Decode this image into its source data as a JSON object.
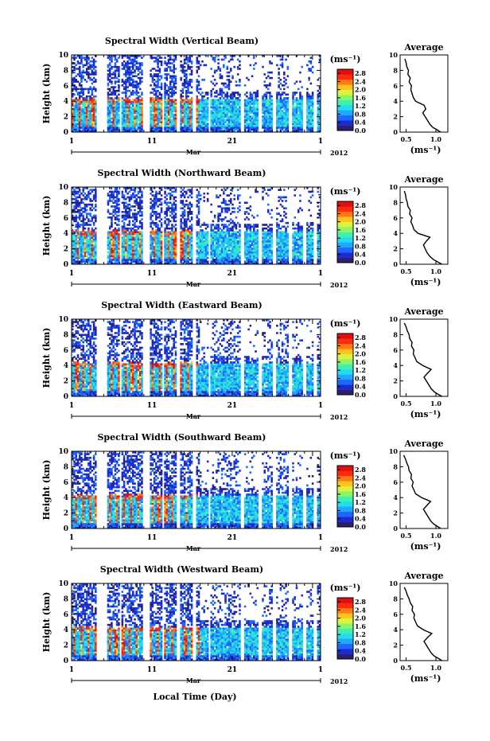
{
  "chart_data": {
    "type": "heatmap",
    "xlabel": "Local Time (Day)",
    "month_label": "Mar",
    "year_label": "2012",
    "x_ticks": [
      "1",
      "11",
      "21",
      "1"
    ],
    "xlim_days": [
      1,
      32
    ],
    "ylabel": "Height (km)",
    "ylim_km": [
      0,
      10
    ],
    "y_ticks": [
      "0",
      "2",
      "4",
      "6",
      "8",
      "10"
    ],
    "colorbar": {
      "unit_label": "(ms⁻¹)",
      "ticks": [
        "0.0",
        "0.4",
        "0.8",
        "1.2",
        "1.6",
        "2.0",
        "2.4",
        "2.8"
      ],
      "range": [
        0.0,
        3.0
      ],
      "colors": [
        "#2b1f6e",
        "#1b2bd0",
        "#1f66ff",
        "#1fa8ff",
        "#22ddee",
        "#3ff0b0",
        "#8cf56a",
        "#dcf23c",
        "#ffc21e",
        "#ff7a14",
        "#ff2a10",
        "#e01010"
      ]
    },
    "average_panel": {
      "title": "Average",
      "xlabel": "(ms⁻¹)",
      "x_tick_labels": [
        "0.5",
        "1.0"
      ],
      "xlim": [
        0.4,
        1.2
      ],
      "ylim_km": [
        0,
        10
      ]
    },
    "panels": [
      {
        "title": "Spectral Width (Vertical Beam)",
        "average_profile": {
          "height_km": [
            0,
            0.3,
            0.6,
            1.0,
            1.5,
            2.0,
            2.5,
            3.0,
            3.5,
            4.0,
            4.5,
            5.0,
            5.5,
            6.0,
            6.5,
            7.0,
            7.5,
            8.0,
            8.5,
            9.0,
            9.5
          ],
          "value": [
            1.08,
            1.02,
            0.95,
            0.9,
            0.86,
            0.82,
            0.78,
            0.83,
            0.8,
            0.66,
            0.62,
            0.6,
            0.58,
            0.59,
            0.55,
            0.57,
            0.53,
            0.54,
            0.51,
            0.5,
            0.48
          ]
        }
      },
      {
        "title": "Spectral Width (Northward Beam)",
        "average_profile": {
          "height_km": [
            0,
            0.3,
            0.6,
            1.0,
            1.5,
            2.0,
            2.5,
            3.0,
            3.5,
            4.0,
            4.5,
            5.0,
            5.5,
            6.0,
            6.5,
            7.0,
            7.5,
            8.0,
            8.5,
            9.0,
            9.5
          ],
          "value": [
            1.1,
            1.03,
            0.96,
            0.9,
            0.85,
            0.82,
            0.79,
            0.84,
            0.9,
            0.7,
            0.63,
            0.61,
            0.58,
            0.6,
            0.56,
            0.57,
            0.53,
            0.52,
            0.5,
            0.49,
            0.47
          ]
        }
      },
      {
        "title": "Spectral Width (Eastward Beam)",
        "average_profile": {
          "height_km": [
            0,
            0.3,
            0.6,
            1.0,
            1.5,
            2.0,
            2.5,
            3.0,
            3.5,
            4.0,
            4.5,
            5.0,
            5.5,
            6.0,
            6.5,
            7.0,
            7.5,
            8.0,
            8.5,
            9.0,
            9.5
          ],
          "value": [
            1.1,
            1.03,
            0.97,
            0.92,
            0.88,
            0.84,
            0.8,
            0.86,
            0.92,
            0.78,
            0.68,
            0.65,
            0.62,
            0.63,
            0.59,
            0.6,
            0.56,
            0.55,
            0.52,
            0.5,
            0.47
          ]
        }
      },
      {
        "title": "Spectral Width (Southward Beam)",
        "average_profile": {
          "height_km": [
            0,
            0.3,
            0.6,
            1.0,
            1.5,
            2.0,
            2.5,
            3.0,
            3.5,
            4.0,
            4.5,
            5.0,
            5.5,
            6.0,
            6.5,
            7.0,
            7.5,
            8.0,
            8.5,
            9.0,
            9.5
          ],
          "value": [
            1.08,
            1.02,
            0.96,
            0.91,
            0.87,
            0.83,
            0.79,
            0.85,
            0.91,
            0.76,
            0.66,
            0.63,
            0.6,
            0.62,
            0.58,
            0.59,
            0.55,
            0.54,
            0.51,
            0.49,
            0.46
          ]
        }
      },
      {
        "title": "Spectral Width (Westward Beam)",
        "average_profile": {
          "height_km": [
            0,
            0.3,
            0.6,
            1.0,
            1.5,
            2.0,
            2.5,
            3.0,
            3.5,
            4.0,
            4.5,
            5.0,
            5.5,
            6.0,
            6.5,
            7.0,
            7.5,
            8.0,
            8.5,
            9.0,
            9.5
          ],
          "value": [
            1.1,
            1.04,
            0.97,
            0.92,
            0.88,
            0.84,
            0.8,
            0.86,
            0.93,
            0.79,
            0.69,
            0.66,
            0.63,
            0.64,
            0.6,
            0.61,
            0.57,
            0.55,
            0.52,
            0.5,
            0.47
          ]
        }
      }
    ]
  }
}
